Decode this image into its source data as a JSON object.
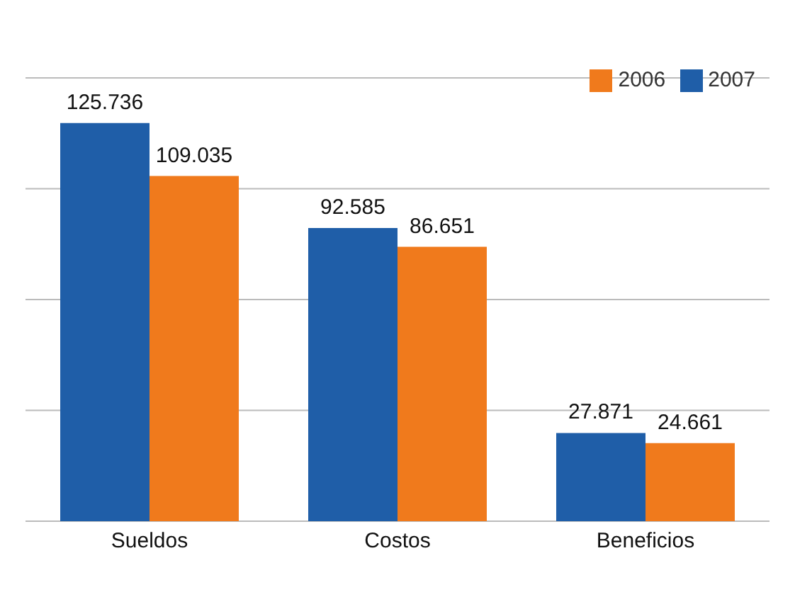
{
  "chart_data": {
    "type": "bar",
    "categories": [
      "Sueldos",
      "Costos",
      "Beneficios"
    ],
    "series": [
      {
        "name": "2007",
        "color": "#1f5ea8",
        "values": [
          125.736,
          92.585,
          27.871
        ],
        "value_labels": [
          "125.736",
          "92.585",
          "27.871"
        ]
      },
      {
        "name": "2006",
        "color": "#f07a1c",
        "values": [
          109.035,
          86.651,
          24.661
        ],
        "value_labels": [
          "109.035",
          "86.651",
          "24.661"
        ]
      }
    ],
    "grid": "y",
    "legend": "top right"
  }
}
